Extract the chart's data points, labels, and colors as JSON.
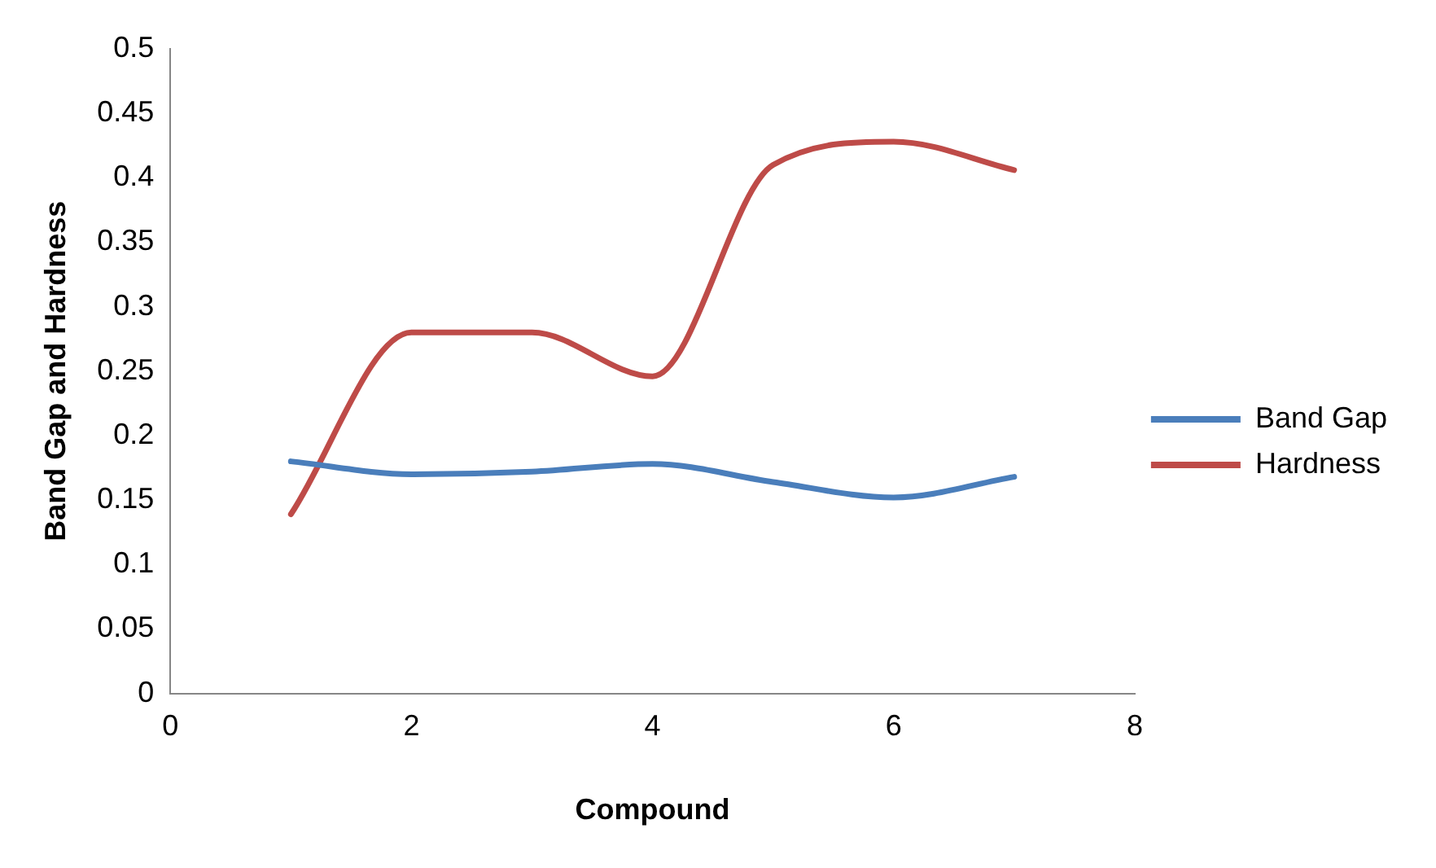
{
  "chart_data": {
    "type": "line",
    "xlabel": "Compound",
    "ylabel": "Band Gap and Hardness",
    "x": [
      1,
      2,
      3,
      4,
      5,
      6,
      7
    ],
    "series": [
      {
        "name": "Band Gap",
        "color": "#4a7ebb",
        "values": [
          0.18,
          0.17,
          0.172,
          0.178,
          0.164,
          0.152,
          0.168
        ]
      },
      {
        "name": "Hardness",
        "color": "#be4b48",
        "values": [
          0.139,
          0.28,
          0.28,
          0.246,
          0.41,
          0.428,
          0.406
        ]
      }
    ],
    "xlim": [
      0,
      8
    ],
    "xticks": [
      0,
      2,
      4,
      6,
      8
    ],
    "ylim": [
      0,
      0.5
    ],
    "yticks": [
      0,
      0.05,
      0.1,
      0.15,
      0.2,
      0.25,
      0.3,
      0.35,
      0.4,
      0.45,
      0.5
    ],
    "grid": false,
    "legend": "right",
    "marker": "none",
    "line_style": "solid"
  }
}
